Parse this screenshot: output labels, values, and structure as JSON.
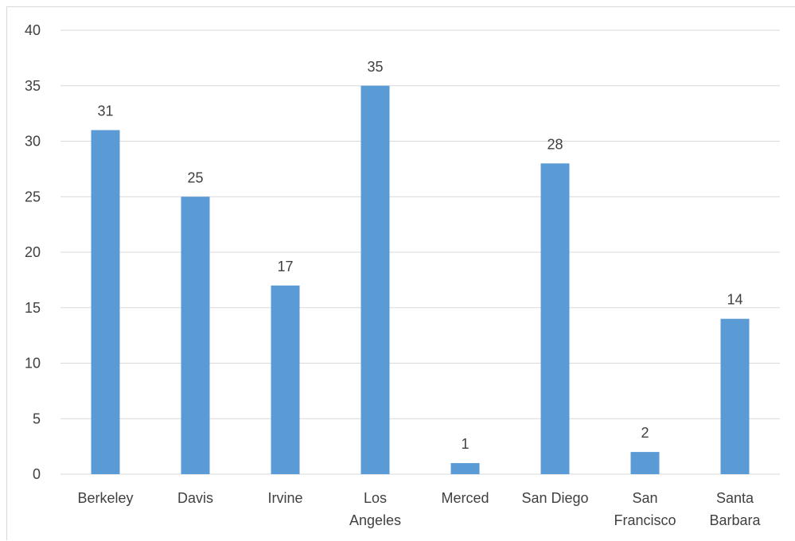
{
  "chart_data": {
    "type": "bar",
    "title": "",
    "xlabel": "",
    "ylabel": "",
    "categories": [
      "Berkeley",
      "Davis",
      "Irvine",
      "Los Angeles",
      "Merced",
      "San Diego",
      "San Francisco",
      "Santa Barbara"
    ],
    "category_lines": [
      [
        "Berkeley"
      ],
      [
        "Davis"
      ],
      [
        "Irvine"
      ],
      [
        "Los",
        "Angeles"
      ],
      [
        "Merced"
      ],
      [
        "San Diego"
      ],
      [
        "San",
        "Francisco"
      ],
      [
        "Santa",
        "Barbara"
      ]
    ],
    "values": [
      31,
      25,
      17,
      35,
      1,
      28,
      2,
      14
    ],
    "data_labels": [
      "31",
      "25",
      "17",
      "35",
      "1",
      "28",
      "2",
      "14"
    ],
    "ylim": [
      0,
      40
    ],
    "yticks": [
      0,
      5,
      10,
      15,
      20,
      25,
      30,
      35,
      40
    ],
    "grid": true,
    "legend": "none",
    "colors": {
      "bar": "#5b9bd5",
      "grid": "#d9d9d9",
      "text": "#404040"
    }
  }
}
